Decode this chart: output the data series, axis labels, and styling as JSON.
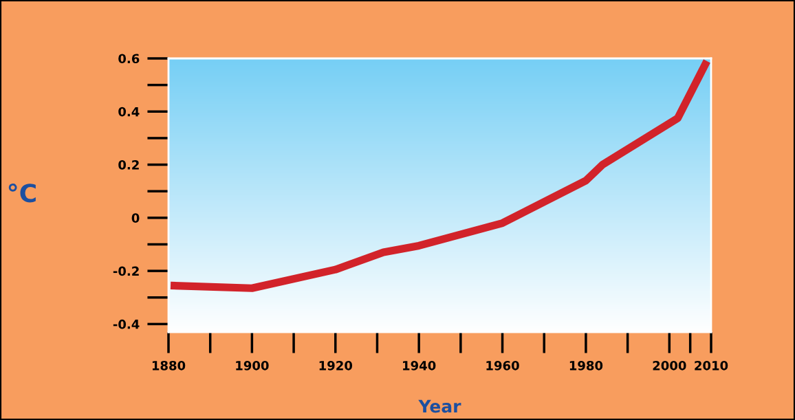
{
  "chart_data": {
    "type": "line",
    "xlabel": "Year",
    "ylabel": "°C",
    "x": [
      1880.5,
      1900,
      1920,
      1931.5,
      1940,
      1960,
      1980,
      1984,
      2002,
      2009
    ],
    "series": [
      {
        "color": "#d2232a",
        "values": [
          -0.255,
          -0.265,
          -0.195,
          -0.13,
          -0.105,
          -0.02,
          0.14,
          0.2,
          0.375,
          0.59
        ]
      }
    ],
    "xlim": [
      1880,
      2010
    ],
    "xticks": [
      1880,
      1900,
      1920,
      1940,
      1960,
      1980,
      2000,
      2010
    ],
    "ylim": [
      -0.43,
      0.6
    ],
    "yticks": [
      {
        "value": -0.4,
        "label": "-0.4"
      },
      {
        "value": -0.2,
        "label": "-0.2"
      },
      0,
      0.2,
      0.4,
      0.6
    ],
    "grid": false,
    "legend": false,
    "marker": "none",
    "line_style": "solid"
  }
}
